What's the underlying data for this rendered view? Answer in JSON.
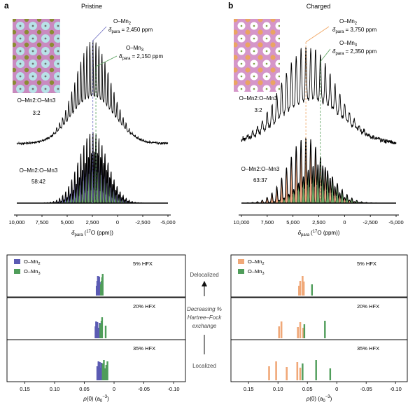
{
  "panel_a": {
    "letter": "a",
    "title": "Pristine",
    "label_mn2_line1": "O–Mn",
    "label_mn2_sub": "2",
    "label_mn2_shift": "= 2,450 ppm",
    "label_mn3_line1": "O–Mn",
    "label_mn3_sub": "3",
    "label_mn3_shift": "= 2,150 ppm",
    "inset_ratio_label": "O–Mn2:O–Mn3",
    "inset_ratio": "3:2",
    "fit_ratio_label": "O–Mn2:O–Mn3",
    "fit_ratio": "58:42",
    "delta_symbol": "δ",
    "delta_sub": "para"
  },
  "panel_b": {
    "letter": "b",
    "title": "Charged",
    "label_mn2_line1": "O–Mn",
    "label_mn2_sub": "2",
    "label_mn2_shift": "= 3,750 ppm",
    "label_mn3_line1": "O–Mn",
    "label_mn3_sub": "3",
    "label_mn3_shift": "= 2,350 ppm",
    "inset_ratio_label": "O–Mn2:O–Mn3",
    "inset_ratio": "3:2",
    "fit_ratio_label": "O–Mn2:O–Mn3",
    "fit_ratio": "63:37",
    "delta_symbol": "δ",
    "delta_sub": "para"
  },
  "middle": {
    "top": "Delocalized",
    "center_line1": "Decreasing %",
    "center_line2": "Hartree–Fock",
    "center_line3": "exchange",
    "bottom": "Localized"
  },
  "hfx_labels": [
    "5% HFX",
    "20% HFX",
    "35% HFX"
  ],
  "colors": {
    "mn2_pristine": "#5b5bb3",
    "mn3": "#4f9d5a",
    "mn2_charged": "#f0a878",
    "mn3_fill": "#6aaa63",
    "mn2_fill_charged": "#eea27a",
    "mn2_fill_pristine": "#7a78c4"
  },
  "chart_data": [
    {
      "type": "line",
      "panel": "a-top",
      "title": "Pristine",
      "xlabel": "δpara (17O (ppm))",
      "x_ticks": [
        "10,000",
        "7,500",
        "5,000",
        "2,500",
        "0",
        "-2,500",
        "-5,000"
      ],
      "xlim": [
        10000,
        -5000
      ],
      "series": [
        {
          "role": "experimental spectrum",
          "centre_ppm": 2450
        },
        {
          "role": "fit O–Mn2",
          "centre_ppm": 2450,
          "fraction": 0.58
        },
        {
          "role": "fit O–Mn3",
          "centre_ppm": 2150,
          "fraction": 0.42
        }
      ],
      "marker_lines_ppm": [
        2450,
        2150
      ]
    },
    {
      "type": "line",
      "panel": "b-top",
      "title": "Charged",
      "xlabel": "δpara (17O (ppm))",
      "x_ticks": [
        "10,000",
        "7,500",
        "5,000",
        "2,500",
        "0",
        "-2,500",
        "-5,000"
      ],
      "xlim": [
        10000,
        -5000
      ],
      "series": [
        {
          "role": "experimental spectrum",
          "centre_ppm": 3200
        },
        {
          "role": "fit O–Mn2",
          "centre_ppm": 3750,
          "fraction": 0.63
        },
        {
          "role": "fit O–Mn3",
          "centre_ppm": 2350,
          "fraction": 0.37
        }
      ],
      "marker_lines_ppm": [
        3750,
        2350
      ]
    },
    {
      "type": "bar",
      "panel": "a-bottom",
      "xlabel": "ρ(0) (a0−3)",
      "x_ticks": [
        "0.15",
        "0.10",
        "0.05",
        "0",
        "-0.05",
        "-0.10"
      ],
      "xlim": [
        0.18,
        -0.12
      ],
      "legend": [
        "O–Mn2",
        "O–Mn3"
      ],
      "legend_position": "top-left",
      "subplots": [
        {
          "label": "5% HFX",
          "mn2": [
            0.029,
            0.028,
            0.027,
            0.026,
            0.025,
            0.024
          ],
          "mn3": [
            0.022,
            0.021,
            0.02,
            0.019
          ]
        },
        {
          "label": "20% HFX",
          "mn2": [
            0.031,
            0.03,
            0.029,
            0.028,
            0.026,
            0.024
          ],
          "mn3": [
            0.023,
            0.021,
            0.02,
            0.014
          ]
        },
        {
          "label": "35% HFX",
          "mn2": [
            0.028,
            0.026,
            0.025,
            0.024,
            0.022,
            0.021
          ],
          "mn3": [
            0.019,
            0.017,
            0.015,
            0.013,
            0.011
          ]
        }
      ]
    },
    {
      "type": "bar",
      "panel": "b-bottom",
      "xlabel": "ρ(0) (a0−3)",
      "x_ticks": [
        "0.15",
        "0.10",
        "0.05",
        "0",
        "-0.05",
        "-0.10"
      ],
      "xlim": [
        0.18,
        -0.12
      ],
      "legend": [
        "O–Mn2",
        "O–Mn3"
      ],
      "legend_position": "top-left",
      "subplots": [
        {
          "label": "5% HFX",
          "mn2": [
            0.064,
            0.062,
            0.058,
            0.056
          ],
          "mn3": [
            0.042
          ]
        },
        {
          "label": "20% HFX",
          "mn2": [
            0.098,
            0.094,
            0.066,
            0.062,
            0.057
          ],
          "mn3": [
            0.055,
            0.02
          ]
        },
        {
          "label": "35% HFX",
          "mn2": [
            0.115,
            0.103,
            0.085,
            0.067,
            0.062
          ],
          "mn3": [
            0.058,
            0.035,
            0.011
          ]
        }
      ]
    }
  ]
}
